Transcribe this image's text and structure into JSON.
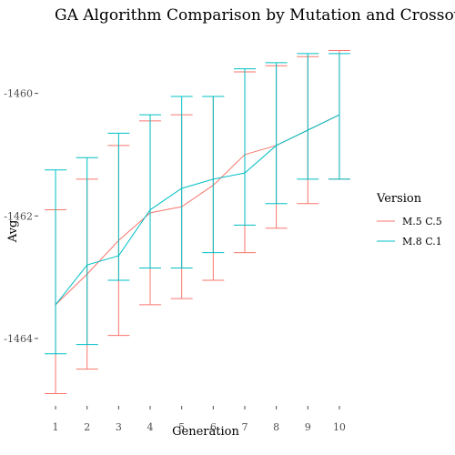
{
  "chart_data": {
    "type": "line",
    "title": "GA Algorithm Comparison by Mutation and Crossover Proba",
    "xlabel": "Generation",
    "ylabel": "Avg",
    "x": [
      1,
      2,
      3,
      4,
      5,
      6,
      7,
      8,
      9,
      10
    ],
    "x_ticks": [
      "1",
      "2",
      "3",
      "4",
      "5",
      "6",
      "7",
      "8",
      "9",
      "10"
    ],
    "ylim": [
      -1465.1,
      -1459.1
    ],
    "y_ticks": [
      -1464,
      -1462,
      -1460
    ],
    "y_tick_labels": [
      "-1464",
      "-1462",
      "-1460"
    ],
    "grid": false,
    "legend": {
      "title": "Version",
      "position": "right"
    },
    "series": [
      {
        "name": "M.5 C.5",
        "color": "#F8766D",
        "values": [
          -1463.45,
          -1462.95,
          -1462.4,
          -1461.95,
          -1461.85,
          -1461.5,
          -1461.0,
          -1460.85,
          -1460.6,
          -1460.35
        ],
        "lower": [
          -1464.9,
          -1464.5,
          -1463.95,
          -1463.45,
          -1463.35,
          -1463.05,
          -1462.6,
          -1462.2,
          -1461.8,
          -1461.4
        ],
        "upper": [
          -1461.9,
          -1461.4,
          -1460.85,
          -1460.45,
          -1460.35,
          -1460.05,
          -1459.65,
          -1459.55,
          -1459.4,
          -1459.3
        ]
      },
      {
        "name": "M.8 C.1",
        "color": "#00BFC4",
        "values": [
          -1463.45,
          -1462.8,
          -1462.65,
          -1461.9,
          -1461.55,
          -1461.4,
          -1461.3,
          -1460.85,
          -1460.6,
          -1460.35
        ],
        "lower": [
          -1464.25,
          -1464.1,
          -1463.05,
          -1462.85,
          -1462.85,
          -1462.6,
          -1462.15,
          -1461.8,
          -1461.4,
          -1461.4
        ],
        "upper": [
          -1461.25,
          -1461.05,
          -1460.65,
          -1460.35,
          -1460.05,
          -1460.05,
          -1459.6,
          -1459.5,
          -1459.35,
          -1459.35
        ]
      }
    ]
  }
}
